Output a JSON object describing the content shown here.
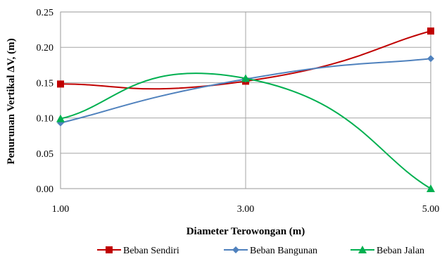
{
  "chart_data": {
    "type": "line",
    "title": "",
    "xlabel": "Diameter Terowongan (m)",
    "ylabel": "Penurunan Vertikal  ΔV, (m)",
    "x": [
      1.0,
      3.0,
      5.0
    ],
    "x_tick_labels": [
      "1.00",
      "3.00",
      "5.00"
    ],
    "xlim": [
      1.0,
      5.0
    ],
    "ylim": [
      0.0,
      0.25
    ],
    "y_ticks": [
      0.0,
      0.05,
      0.1,
      0.15,
      0.2,
      0.25
    ],
    "y_tick_labels": [
      "0.00",
      "0.05",
      "0.10",
      "0.15",
      "0.20",
      "0.25"
    ],
    "grid": true,
    "legend": "bottom",
    "series": [
      {
        "name": "Beban Sendiri",
        "values": [
          0.148,
          0.152,
          0.223
        ],
        "color": "#c00000",
        "marker": "square"
      },
      {
        "name": "Beban Bangunan",
        "values": [
          0.093,
          0.155,
          0.184
        ],
        "color": "#4f81bd",
        "marker": "diamond"
      },
      {
        "name": "Beban Jalan",
        "values": [
          0.099,
          0.156,
          0.0
        ],
        "color": "#00b050",
        "marker": "triangle"
      }
    ]
  }
}
